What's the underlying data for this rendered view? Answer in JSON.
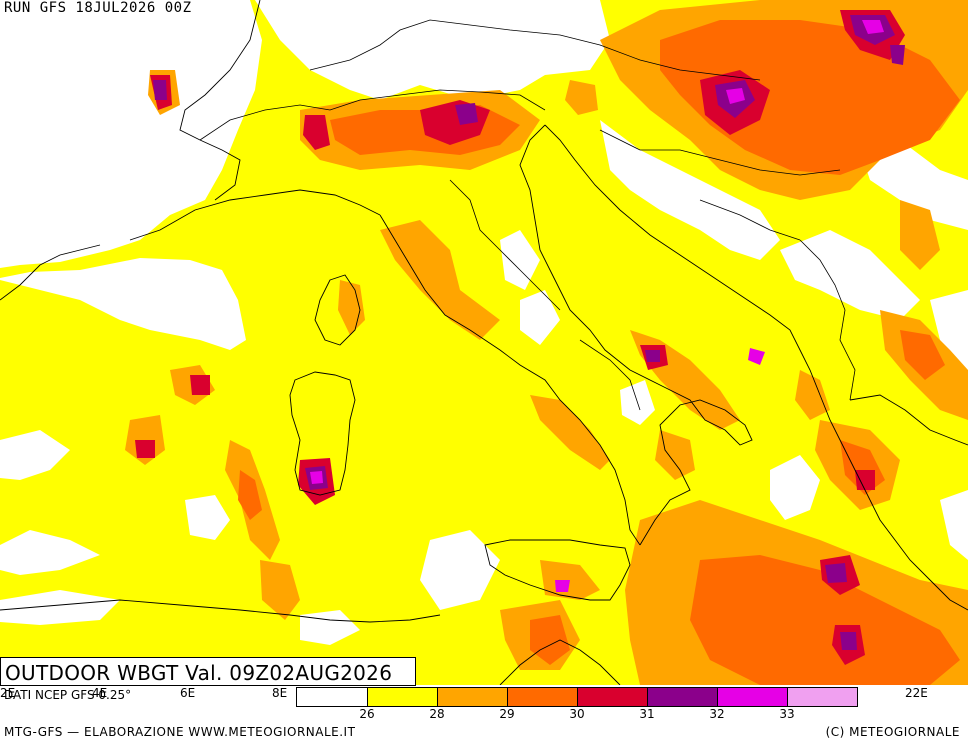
{
  "header": {
    "run_label": "RUN GFS 18JUL2026 00Z"
  },
  "title": {
    "text": "OUTDOOR WBGT Val. 09Z02AUG2026"
  },
  "source": {
    "text": "DATI NCEP GFS 0.25°"
  },
  "longitude_labels": [
    "2E",
    "4E",
    "6E",
    "8E",
    "22E"
  ],
  "legend": {
    "bins": [
      {
        "color": "#ffffff"
      },
      {
        "color": "#ffff00"
      },
      {
        "color": "#ffa500"
      },
      {
        "color": "#ff6a00"
      },
      {
        "color": "#d9002e"
      },
      {
        "color": "#8b008b"
      },
      {
        "color": "#e600e6"
      },
      {
        "color": "#f0a0f0"
      }
    ],
    "ticks": [
      "26",
      "28",
      "29",
      "30",
      "31",
      "32",
      "33"
    ]
  },
  "footer": {
    "left": "MTG-GFS — ELABORAZIONE WWW.METEOGIORNALE.IT",
    "right": "(C) METEOGIORNALE"
  }
}
